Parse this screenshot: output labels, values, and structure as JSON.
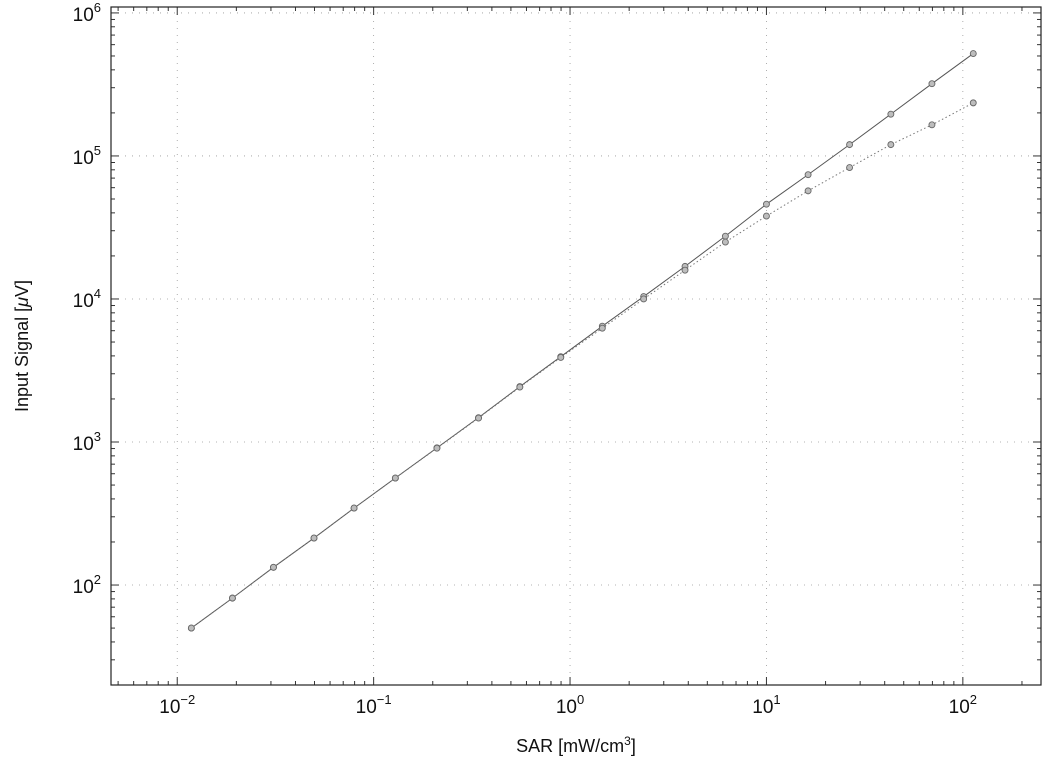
{
  "chart_data": {
    "type": "line",
    "title": "",
    "xlabel": {
      "before": "SAR [mW/cm",
      "sup": "3",
      "after": "]"
    },
    "ylabel": {
      "before": "Input Signal [",
      "mu": "μ",
      "after": "V]"
    },
    "xscale": "log",
    "yscale": "log",
    "xlim": [
      0.0046,
      250
    ],
    "ylim": [
      20,
      1100000
    ],
    "grid": "dotted",
    "legend": "none",
    "x_ticks": [
      {
        "base": "10",
        "exp": "−2",
        "value": 0.01
      },
      {
        "base": "10",
        "exp": "−1",
        "value": 0.1
      },
      {
        "base": "10",
        "exp": "0",
        "value": 1
      },
      {
        "base": "10",
        "exp": "1",
        "value": 10
      },
      {
        "base": "10",
        "exp": "2",
        "value": 100
      }
    ],
    "y_ticks": [
      {
        "base": "10",
        "exp": "2",
        "value": 100
      },
      {
        "base": "10",
        "exp": "3",
        "value": 1000
      },
      {
        "base": "10",
        "exp": "4",
        "value": 10000
      },
      {
        "base": "10",
        "exp": "5",
        "value": 100000
      },
      {
        "base": "10",
        "exp": "6",
        "value": 1000000
      }
    ],
    "x": [
      0.0118,
      0.0191,
      0.0309,
      0.0497,
      0.0795,
      0.129,
      0.21,
      0.342,
      0.555,
      0.897,
      1.46,
      2.37,
      3.85,
      6.18,
      10.0,
      16.3,
      26.5,
      43.0,
      69.6,
      113
    ],
    "series": [
      {
        "style": "solid",
        "color": "#555555",
        "values": [
          50,
          81,
          133,
          213,
          345,
          560,
          910,
          1480,
          2440,
          3950,
          6450,
          10400,
          16900,
          27500,
          46000,
          74000,
          120000,
          196000,
          320000,
          520000
        ]
      },
      {
        "style": "dotted",
        "color": "#777777",
        "values": [
          50,
          81,
          133,
          213,
          345,
          560,
          905,
          1470,
          2420,
          3900,
          6250,
          10000,
          15900,
          25000,
          38000,
          57000,
          83000,
          120000,
          165000,
          235000
        ]
      }
    ]
  }
}
